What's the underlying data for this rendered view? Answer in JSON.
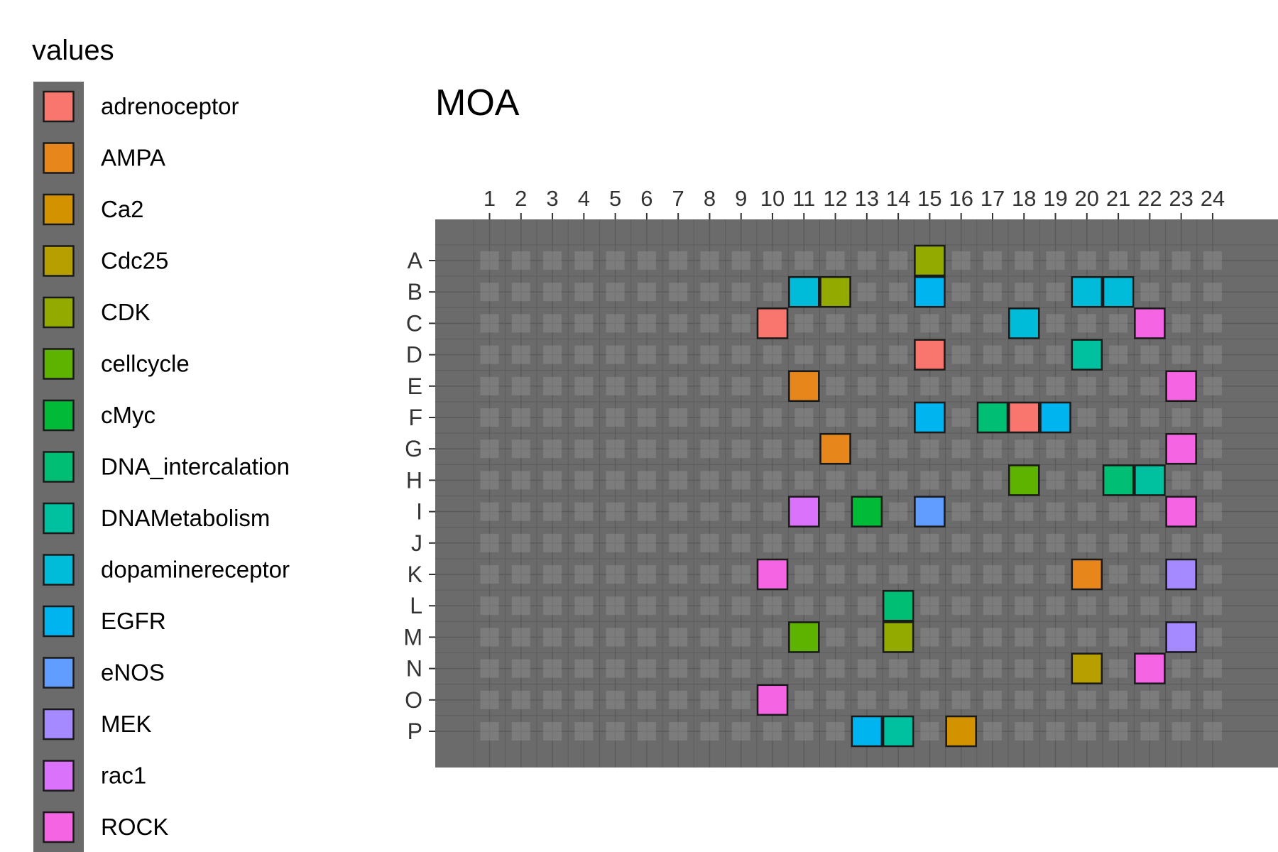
{
  "chart_data": {
    "type": "heatmap",
    "title": "MOA",
    "legend_title": "values",
    "legend_position": "left",
    "columns": [
      "1",
      "2",
      "3",
      "4",
      "5",
      "6",
      "7",
      "8",
      "9",
      "10",
      "11",
      "12",
      "13",
      "14",
      "15",
      "16",
      "17",
      "18",
      "19",
      "20",
      "21",
      "22",
      "23",
      "24"
    ],
    "rows": [
      "A",
      "B",
      "C",
      "D",
      "E",
      "F",
      "G",
      "H",
      "I",
      "J",
      "K",
      "L",
      "M",
      "N",
      "O",
      "P"
    ],
    "categories": [
      {
        "name": "adrenoceptor",
        "color": "#F8766D"
      },
      {
        "name": "AMPA",
        "color": "#E7861B"
      },
      {
        "name": "Ca2",
        "color": "#D39200"
      },
      {
        "name": "Cdc25",
        "color": "#B79F00"
      },
      {
        "name": "CDK",
        "color": "#93AA00"
      },
      {
        "name": "cellcycle",
        "color": "#5EB300"
      },
      {
        "name": "cMyc",
        "color": "#00BA38"
      },
      {
        "name": "DNA_intercalation",
        "color": "#00BF74"
      },
      {
        "name": "DNAMetabolism",
        "color": "#00C19F"
      },
      {
        "name": "dopaminereceptor",
        "color": "#00BCD8"
      },
      {
        "name": "EGFR",
        "color": "#00B4F0"
      },
      {
        "name": "eNOS",
        "color": "#619CFF"
      },
      {
        "name": "MEK",
        "color": "#A58AFF"
      },
      {
        "name": "rac1",
        "color": "#DB72FB"
      },
      {
        "name": "ROCK",
        "color": "#F564E3"
      }
    ],
    "cells": [
      {
        "row": "A",
        "col": 15,
        "value": "CDK"
      },
      {
        "row": "B",
        "col": 11,
        "value": "dopaminereceptor"
      },
      {
        "row": "B",
        "col": 12,
        "value": "CDK"
      },
      {
        "row": "B",
        "col": 15,
        "value": "EGFR"
      },
      {
        "row": "B",
        "col": 20,
        "value": "dopaminereceptor"
      },
      {
        "row": "B",
        "col": 21,
        "value": "dopaminereceptor"
      },
      {
        "row": "C",
        "col": 10,
        "value": "adrenoceptor"
      },
      {
        "row": "C",
        "col": 18,
        "value": "dopaminereceptor"
      },
      {
        "row": "C",
        "col": 22,
        "value": "ROCK"
      },
      {
        "row": "D",
        "col": 15,
        "value": "adrenoceptor"
      },
      {
        "row": "D",
        "col": 20,
        "value": "DNAMetabolism"
      },
      {
        "row": "E",
        "col": 11,
        "value": "AMPA"
      },
      {
        "row": "E",
        "col": 23,
        "value": "ROCK"
      },
      {
        "row": "F",
        "col": 15,
        "value": "EGFR"
      },
      {
        "row": "F",
        "col": 17,
        "value": "DNA_intercalation"
      },
      {
        "row": "F",
        "col": 18,
        "value": "adrenoceptor"
      },
      {
        "row": "F",
        "col": 19,
        "value": "EGFR"
      },
      {
        "row": "G",
        "col": 12,
        "value": "AMPA"
      },
      {
        "row": "G",
        "col": 23,
        "value": "ROCK"
      },
      {
        "row": "H",
        "col": 18,
        "value": "cellcycle"
      },
      {
        "row": "H",
        "col": 21,
        "value": "DNA_intercalation"
      },
      {
        "row": "H",
        "col": 22,
        "value": "DNAMetabolism"
      },
      {
        "row": "I",
        "col": 11,
        "value": "rac1"
      },
      {
        "row": "I",
        "col": 13,
        "value": "cMyc"
      },
      {
        "row": "I",
        "col": 15,
        "value": "eNOS"
      },
      {
        "row": "I",
        "col": 23,
        "value": "ROCK"
      },
      {
        "row": "K",
        "col": 10,
        "value": "ROCK"
      },
      {
        "row": "K",
        "col": 20,
        "value": "AMPA"
      },
      {
        "row": "K",
        "col": 23,
        "value": "MEK"
      },
      {
        "row": "L",
        "col": 14,
        "value": "DNA_intercalation"
      },
      {
        "row": "M",
        "col": 11,
        "value": "cellcycle"
      },
      {
        "row": "M",
        "col": 14,
        "value": "CDK"
      },
      {
        "row": "M",
        "col": 23,
        "value": "MEK"
      },
      {
        "row": "N",
        "col": 20,
        "value": "Cdc25"
      },
      {
        "row": "N",
        "col": 22,
        "value": "ROCK"
      },
      {
        "row": "O",
        "col": 10,
        "value": "ROCK"
      },
      {
        "row": "P",
        "col": 13,
        "value": "EGFR"
      },
      {
        "row": "P",
        "col": 14,
        "value": "DNAMetabolism"
      },
      {
        "row": "P",
        "col": 16,
        "value": "Ca2"
      }
    ],
    "panel_color": "#6b6b6b",
    "empty_well_color": "#8a8a8a",
    "grid": true
  }
}
